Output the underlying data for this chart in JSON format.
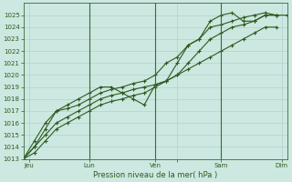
{
  "title": "Pression niveau de la mer( hPa )",
  "bg_color": "#cce8e0",
  "grid_color": "#aacccc",
  "line_color": "#2d5a1e",
  "vline_color": "#3a6a3a",
  "ylim": [
    1013,
    1026
  ],
  "yticks": [
    1013,
    1014,
    1015,
    1016,
    1017,
    1018,
    1019,
    1020,
    1021,
    1022,
    1023,
    1024,
    1025
  ],
  "xlim": [
    0,
    96
  ],
  "xtick_positions": [
    2,
    24,
    48,
    56,
    72,
    94
  ],
  "xtick_labels": [
    "Jeu",
    "Lun",
    "Ven",
    "",
    "Sam",
    "Dim"
  ],
  "vline_positions": [
    24,
    48,
    72
  ],
  "series1_x": [
    0,
    4,
    8,
    12,
    16,
    20,
    24,
    28,
    32,
    36,
    40,
    44,
    48,
    52,
    56,
    60,
    64,
    68,
    72,
    76,
    80,
    84,
    88,
    92,
    96
  ],
  "series1_y": [
    1013,
    1014.0,
    1015.0,
    1016.0,
    1016.5,
    1017.0,
    1017.5,
    1018.0,
    1018.3,
    1018.5,
    1018.8,
    1019.0,
    1019.2,
    1019.5,
    1020.0,
    1021.0,
    1022.0,
    1023.0,
    1023.5,
    1024.0,
    1024.2,
    1024.5,
    1025.0,
    1025.0,
    1025.0
  ],
  "series2_x": [
    0,
    4,
    8,
    12,
    16,
    20,
    24,
    28,
    32,
    36,
    40,
    44,
    48,
    52,
    56,
    60,
    64,
    68,
    72,
    76,
    80,
    84,
    88,
    92
  ],
  "series2_y": [
    1013,
    1014.5,
    1016.0,
    1017.0,
    1017.2,
    1017.5,
    1018.0,
    1018.5,
    1018.8,
    1019.0,
    1019.3,
    1019.5,
    1020.0,
    1021.0,
    1021.5,
    1022.5,
    1023.0,
    1024.0,
    1024.2,
    1024.5,
    1024.8,
    1025.0,
    1025.2,
    1025.0
  ],
  "series3_x": [
    0,
    4,
    8,
    12,
    16,
    20,
    24,
    28,
    32,
    36,
    40,
    44,
    48,
    52,
    56,
    60,
    64,
    68,
    72,
    76,
    80,
    84,
    88,
    92
  ],
  "series3_y": [
    1013,
    1014,
    1015.5,
    1017.0,
    1017.5,
    1018.0,
    1018.5,
    1019.0,
    1019.0,
    1018.5,
    1018.0,
    1017.5,
    1019.2,
    1019.5,
    1021.0,
    1022.5,
    1023.0,
    1024.5,
    1025.0,
    1025.2,
    1024.5,
    1024.5,
    1025.0,
    1025.0
  ],
  "series4_x": [
    0,
    4,
    8,
    12,
    16,
    20,
    24,
    28,
    32,
    36,
    40,
    44,
    48,
    52,
    56,
    60,
    64,
    68,
    72,
    76,
    80,
    84,
    88,
    92
  ],
  "series4_y": [
    1013,
    1013.5,
    1014.5,
    1015.5,
    1016.0,
    1016.5,
    1017.0,
    1017.5,
    1017.8,
    1018.0,
    1018.3,
    1018.5,
    1019.0,
    1019.5,
    1020.0,
    1020.5,
    1021.0,
    1021.5,
    1022.0,
    1022.5,
    1023.0,
    1023.5,
    1024.0,
    1024.0
  ]
}
